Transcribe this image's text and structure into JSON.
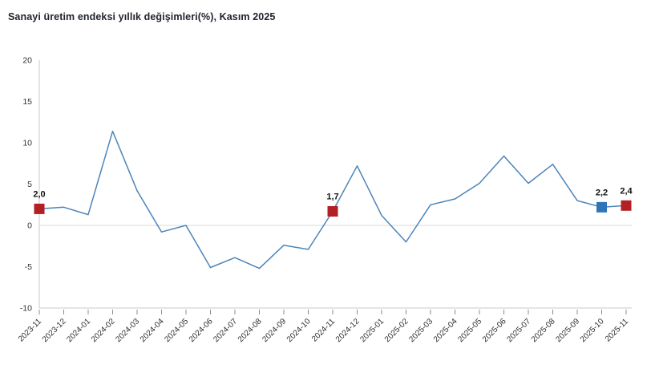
{
  "title": "Sanayi üretim endeksi yıllık değişimleri(%), Kasım 2025",
  "colors": {
    "line": "#4c84ba",
    "marker_red": "#b21f24",
    "marker_blue": "#2e75b6",
    "axis_line": "#c9c9c9",
    "zero_line": "#d9d9d9",
    "title_text": "#21242e",
    "tick_text": "#333333",
    "point_label_text": "#111111"
  },
  "chart_data": {
    "type": "line",
    "title": "Sanayi üretim endeksi yıllık değişimleri(%), Kasım 2025",
    "xlabel": "",
    "ylabel": "",
    "ylim": [
      -10,
      20
    ],
    "yticks": [
      20,
      15,
      10,
      5,
      0,
      -5,
      -10
    ],
    "grid": "horizontal zero-line only",
    "legend": "none",
    "categories": [
      "2023-11",
      "2023-12",
      "2024-01",
      "2024-02",
      "2024-03",
      "2024-04",
      "2024-05",
      "2024-06",
      "2024-07",
      "2024-08",
      "2024-09",
      "2024-10",
      "2024-11",
      "2024-12",
      "2025-01",
      "2025-02",
      "2025-03",
      "2025-04",
      "2025-05",
      "2025-06",
      "2025-07",
      "2025-08",
      "2025-09",
      "2025-10",
      "2025-11"
    ],
    "values": [
      2.0,
      2.2,
      1.3,
      11.4,
      4.2,
      -0.8,
      0.0,
      -5.1,
      -3.9,
      -5.2,
      -2.4,
      -2.9,
      1.7,
      7.2,
      1.2,
      -2.0,
      2.5,
      3.2,
      5.1,
      8.4,
      5.1,
      7.4,
      3.0,
      2.2,
      2.4
    ],
    "labeled_points": [
      {
        "index": 0,
        "category": "2023-11",
        "label": "2,0",
        "marker_color": "#b21f24"
      },
      {
        "index": 12,
        "category": "2024-11",
        "label": "1,7",
        "marker_color": "#b21f24"
      },
      {
        "index": 23,
        "category": "2025-10",
        "label": "2,2",
        "marker_color": "#2e75b6"
      },
      {
        "index": 24,
        "category": "2025-11",
        "label": "2,4",
        "marker_color": "#b21f24"
      }
    ]
  }
}
